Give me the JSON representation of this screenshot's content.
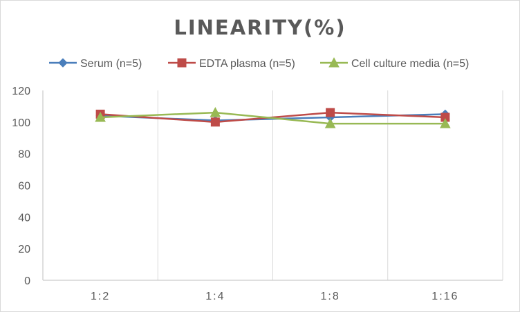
{
  "chart_data": {
    "type": "line",
    "title": "LINEARITY(%)",
    "categories": [
      "1:2",
      "1:4",
      "1:8",
      "1:16"
    ],
    "series": [
      {
        "name": "Serum (n=5)",
        "values": [
          104,
          101,
          103,
          105
        ],
        "color": "#4a7ebb",
        "marker": "diamond"
      },
      {
        "name": "EDTA plasma (n=5)",
        "values": [
          105,
          100,
          106,
          103
        ],
        "color": "#be4b48",
        "marker": "square"
      },
      {
        "name": "Cell culture media (n=5)",
        "values": [
          103,
          106,
          99,
          99
        ],
        "color": "#98b954",
        "marker": "triangle"
      }
    ],
    "ylim": [
      0,
      120
    ],
    "yticks": [
      0,
      20,
      40,
      60,
      80,
      100,
      120
    ],
    "xlabel": "",
    "ylabel": "",
    "grid": "vertical-category-lines",
    "legend_position": "top"
  }
}
